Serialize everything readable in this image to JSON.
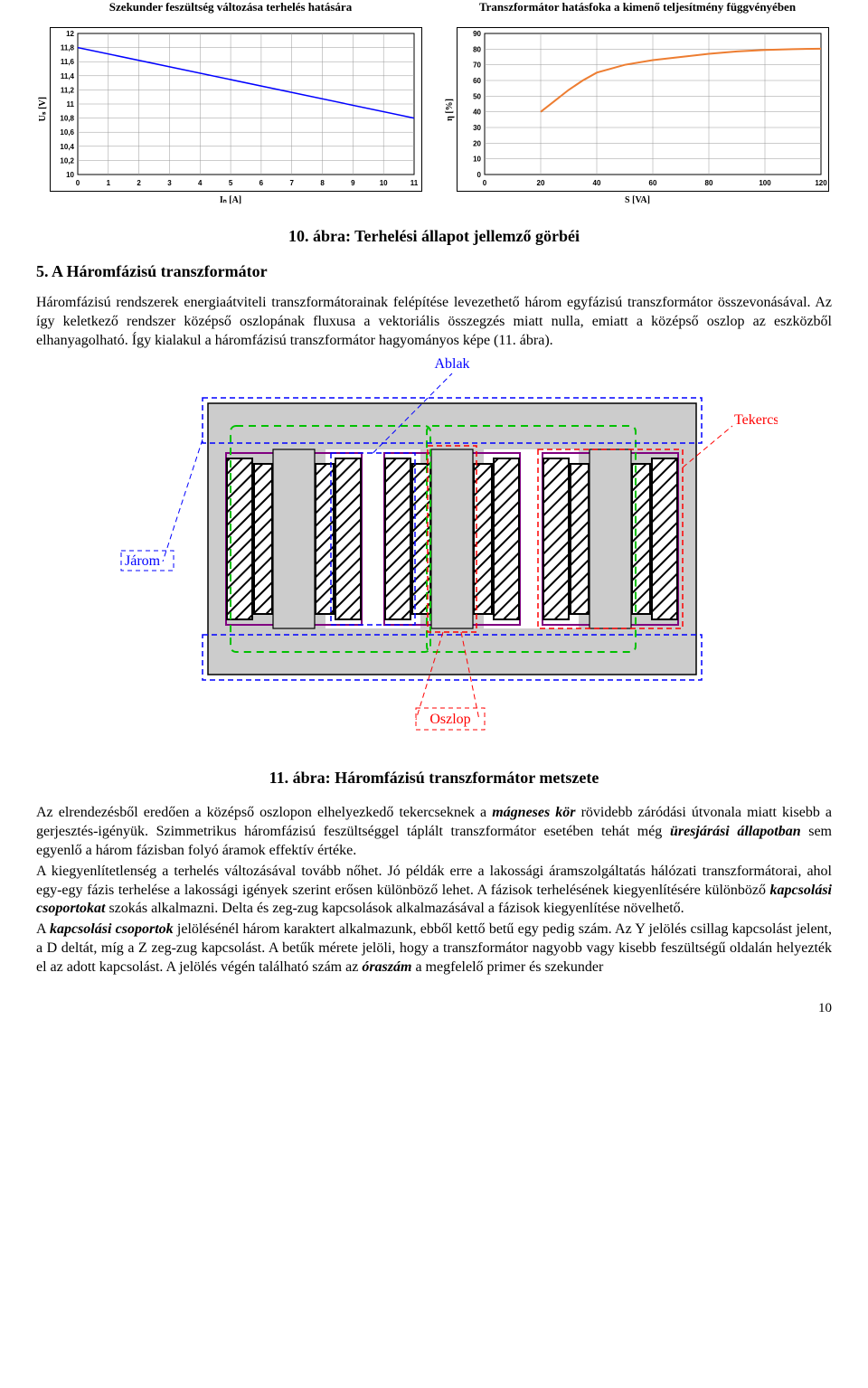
{
  "chart_left": {
    "type": "line",
    "title": "Szekunder feszültség változása terhelés hatására",
    "xlabel": "Iₙ [A]",
    "ylabel": "Uₛ [V]",
    "xlim": [
      0,
      11
    ],
    "xtick_step": 1,
    "ylim": [
      10,
      12
    ],
    "ytick_step": 0.2,
    "yticks": [
      "10",
      "10,2",
      "10,4",
      "10,6",
      "10,8",
      "11",
      "11,2",
      "11,4",
      "11,6",
      "11,8",
      "12"
    ],
    "xticks": [
      "0",
      "1",
      "2",
      "3",
      "4",
      "5",
      "6",
      "7",
      "8",
      "9",
      "10",
      "11"
    ],
    "series": [
      {
        "x": [
          0,
          11
        ],
        "y": [
          11.8,
          10.8
        ],
        "color": "#0000ff",
        "width": 1.5
      }
    ],
    "grid_color": "#999999",
    "bg": "#ffffff"
  },
  "chart_right": {
    "type": "line",
    "title": "Transzformátor hatásfoka a kimenő teljesítmény függvényében",
    "xlabel": "S [VA]",
    "ylabel": "η [%]",
    "xlim": [
      0,
      120
    ],
    "xtick_step": 20,
    "ylim": [
      0,
      90
    ],
    "ytick_step": 10,
    "yticks": [
      "0",
      "10",
      "20",
      "30",
      "40",
      "50",
      "60",
      "70",
      "80",
      "90"
    ],
    "xticks": [
      "0",
      "20",
      "40",
      "60",
      "80",
      "100",
      "120"
    ],
    "series": [
      {
        "x": [
          20,
          25,
          30,
          35,
          40,
          50,
          60,
          70,
          80,
          90,
          100,
          110,
          120
        ],
        "y": [
          40,
          47,
          54,
          60,
          65,
          70,
          73,
          75,
          77,
          78.5,
          79.5,
          80,
          80.3
        ],
        "color": "#ed7d31",
        "width": 2
      }
    ],
    "grid_color": "#999999",
    "bg": "#ffffff"
  },
  "captions": {
    "fig10": "10. ábra: Terhelési állapot jellemző görbéi",
    "fig11": "11. ábra: Háromfázisú transzformátor metszete"
  },
  "section5": {
    "heading": "5. A Háromfázisú transzformátor",
    "para1_a": "Háromfázisú rendszerek energiaátviteli transzformátorainak felépítése levezethető három egyfázisú transzformátor összevonásával. Az így keletkező rendszer középső oszlopának fluxusa a vektoriális összegzés miatt nulla, emiatt a középső oszlop az eszközből elhanyagolható. Így kialakul a háromfázisú transzformátor hagyományos képe (11. ábra)."
  },
  "diagram": {
    "labels": {
      "ablak": "Ablak",
      "tekercs": "Tekercs",
      "jarom": "Járom",
      "oszlop": "Oszlop"
    },
    "colors": {
      "ablak": "#0000ff",
      "tekercs": "#ff0000",
      "jarom": "#0000ff",
      "oszlop": "#ff0000",
      "green_dash": "#00c000",
      "purple": "#800080",
      "hatch": "#000000",
      "fill": "#cccccc"
    }
  },
  "body_text": {
    "p1_a": "Az elrendezésből eredően a középső oszlopon elhelyezkedő tekercseknek a ",
    "p1_b": "mágneses kör",
    "p1_c": " rövidebb záródási útvonala miatt kisebb a gerjesztés-igényük. Szimmetrikus háromfázisú feszültséggel táplált transzformátor esetében tehát még ",
    "p1_d": "üresjárási állapotban",
    "p1_e": " sem egyenlő a három fázisban folyó áramok effektív értéke.",
    "p2_a": "A kiegyenlítetlenség a terhelés változásával tovább nőhet. Jó példák erre a lakossági áramszolgáltatás hálózati transzformátorai, ahol egy-egy fázis terhelése a lakossági igények szerint erősen különböző lehet. A fázisok terhelésének kiegyenlítésére különböző ",
    "p2_b": "kapcsolási csoportokat",
    "p2_c": " szokás alkalmazni. Delta és zeg-zug kapcsolások alkalmazásával a fázisok kiegyenlítése növelhető.",
    "p3_a": "A ",
    "p3_b": "kapcsolási csoportok",
    "p3_c": " jelölésénél három karaktert alkalmazunk, ebből kettő betű egy pedig szám. Az Y jelölés csillag kapcsolást jelent, a D deltát, míg a Z zeg-zug kapcsolást. A betűk mérete jelöli, hogy a transzformátor nagyobb vagy kisebb feszültségű oldalán helyezték el az adott kapcsolást. A jelölés végén található szám az ",
    "p3_d": "óraszám",
    "p3_e": " a megfelelő primer és szekunder"
  },
  "page_number": "10"
}
